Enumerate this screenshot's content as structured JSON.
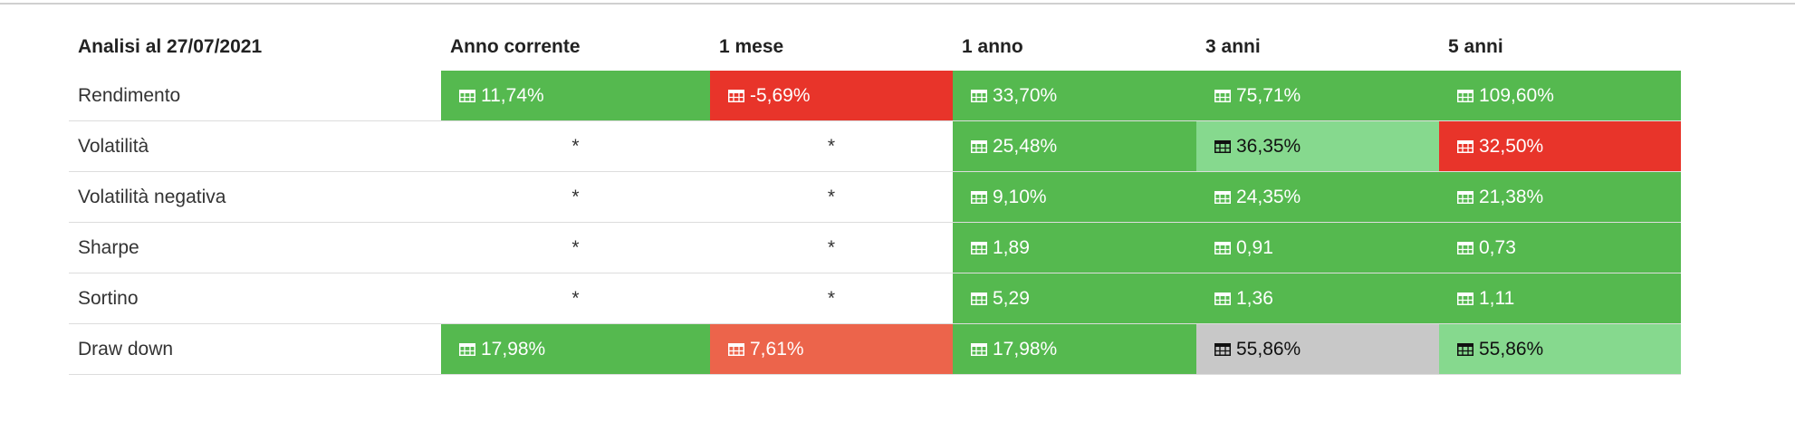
{
  "table": {
    "header": [
      "Analisi al 27/07/2021",
      "Anno corrente",
      "1 mese",
      "1 anno",
      "3 anni",
      "5 anni"
    ],
    "rows": [
      {
        "label": "Rendimento",
        "cells": [
          {
            "text": "11,74%",
            "bg": "#55b94f",
            "fg": "#ffffff"
          },
          {
            "text": "-5,69%",
            "bg": "#e8342a",
            "fg": "#ffffff"
          },
          {
            "text": "33,70%",
            "bg": "#55b94f",
            "fg": "#ffffff"
          },
          {
            "text": "75,71%",
            "bg": "#55b94f",
            "fg": "#ffffff"
          },
          {
            "text": "109,60%",
            "bg": "#55b94f",
            "fg": "#ffffff"
          }
        ]
      },
      {
        "label": "Volatilità",
        "cells": [
          {
            "text": "*"
          },
          {
            "text": "*"
          },
          {
            "text": "25,48%",
            "bg": "#55b94f",
            "fg": "#ffffff"
          },
          {
            "text": "36,35%",
            "bg": "#86d98e",
            "fg": "#111111"
          },
          {
            "text": "32,50%",
            "bg": "#e8342a",
            "fg": "#ffffff"
          }
        ]
      },
      {
        "label": "Volatilità negativa",
        "cells": [
          {
            "text": "*"
          },
          {
            "text": "*"
          },
          {
            "text": "9,10%",
            "bg": "#55b94f",
            "fg": "#ffffff"
          },
          {
            "text": "24,35%",
            "bg": "#55b94f",
            "fg": "#ffffff"
          },
          {
            "text": "21,38%",
            "bg": "#55b94f",
            "fg": "#ffffff"
          }
        ]
      },
      {
        "label": "Sharpe",
        "cells": [
          {
            "text": "*"
          },
          {
            "text": "*"
          },
          {
            "text": "1,89",
            "bg": "#55b94f",
            "fg": "#ffffff"
          },
          {
            "text": "0,91",
            "bg": "#55b94f",
            "fg": "#ffffff"
          },
          {
            "text": "0,73",
            "bg": "#55b94f",
            "fg": "#ffffff"
          }
        ]
      },
      {
        "label": "Sortino",
        "cells": [
          {
            "text": "*"
          },
          {
            "text": "*"
          },
          {
            "text": "5,29",
            "bg": "#55b94f",
            "fg": "#ffffff"
          },
          {
            "text": "1,36",
            "bg": "#55b94f",
            "fg": "#ffffff"
          },
          {
            "text": "1,11",
            "bg": "#55b94f",
            "fg": "#ffffff"
          }
        ]
      },
      {
        "label": "Draw down",
        "cells": [
          {
            "text": "17,98%",
            "bg": "#55b94f",
            "fg": "#ffffff"
          },
          {
            "text": "7,61%",
            "bg": "#ec644b",
            "fg": "#ffffff"
          },
          {
            "text": "17,98%",
            "bg": "#55b94f",
            "fg": "#ffffff"
          },
          {
            "text": "55,86%",
            "bg": "#c8c8c8",
            "fg": "#111111"
          },
          {
            "text": "55,86%",
            "bg": "#86d98e",
            "fg": "#111111"
          }
        ]
      }
    ]
  }
}
